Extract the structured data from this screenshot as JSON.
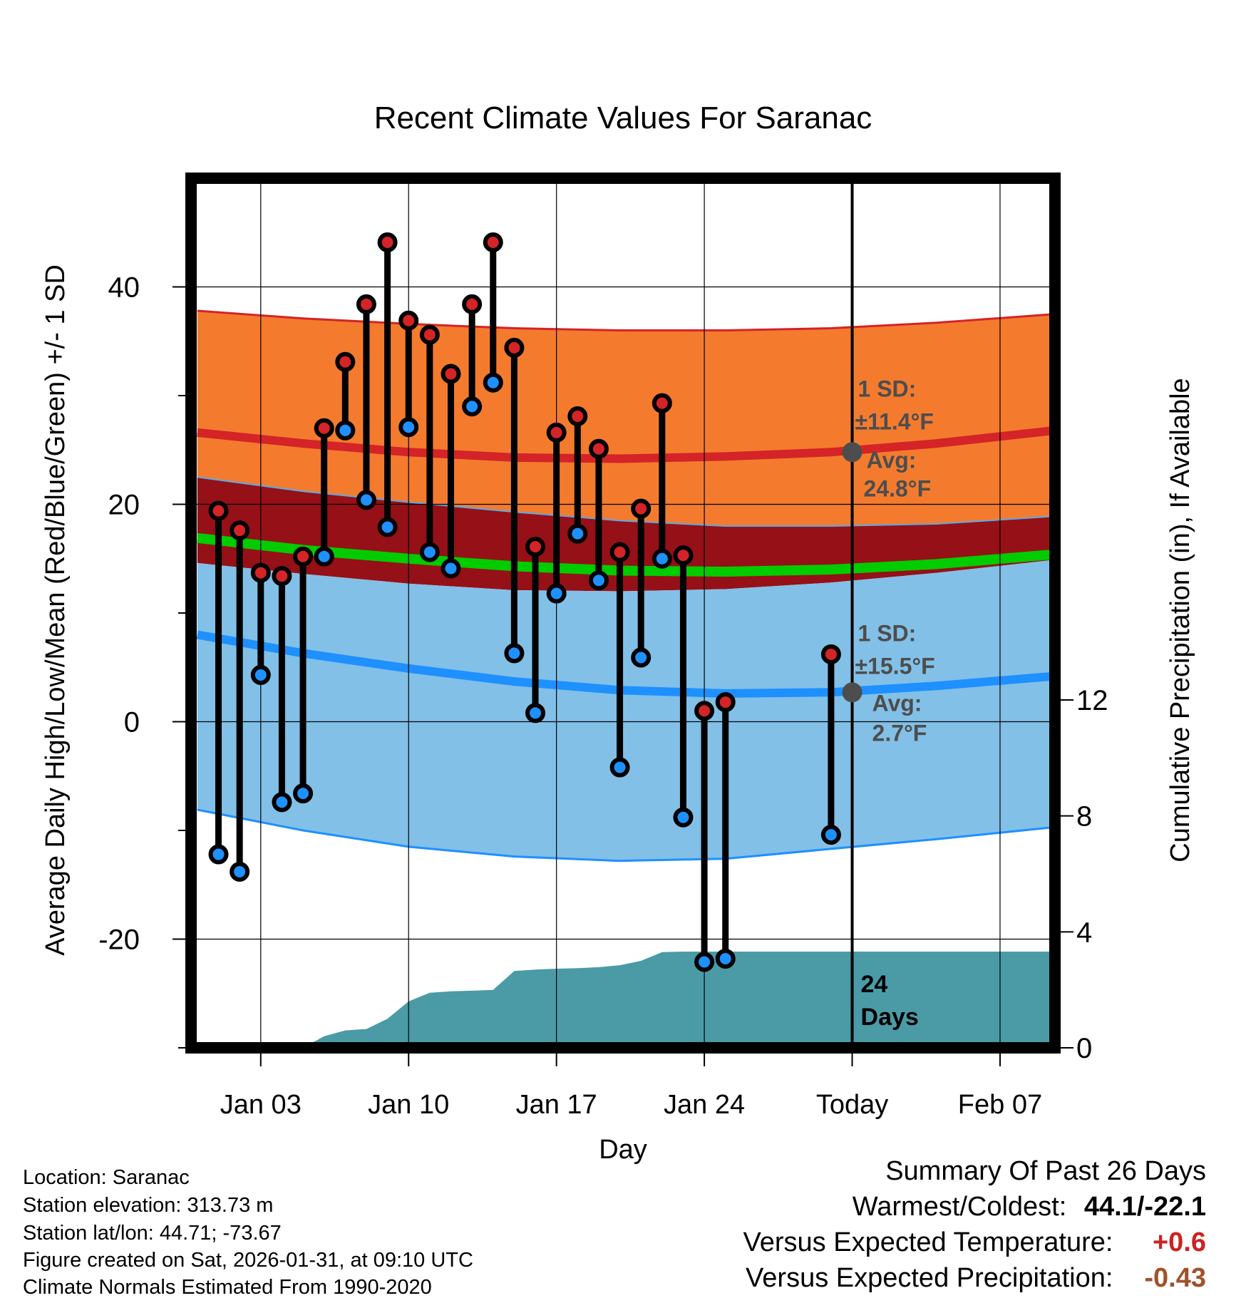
{
  "chart_data": {
    "type": "line",
    "title": "Recent Climate Values For Saranac",
    "xlabel": "Day",
    "ylabel": "Average Daily High/Low/Mean (Red/Blue/Green) +/- 1 SD",
    "ylabel_right": "Cumulative Precipitation (in), If Available",
    "ylim": [
      -30,
      50
    ],
    "y_ticks": [
      -20,
      0,
      20,
      40
    ],
    "y2lim": [
      0,
      30
    ],
    "y2_ticks": [
      0,
      4,
      8,
      12
    ],
    "xlim": [
      -0.3,
      40.6
    ],
    "x_ticks": [
      {
        "day": 3,
        "label": "Jan 03"
      },
      {
        "day": 10,
        "label": "Jan 10"
      },
      {
        "day": 17,
        "label": "Jan 17"
      },
      {
        "day": 24,
        "label": "Jan 24"
      },
      {
        "day": 31,
        "label": "Today"
      },
      {
        "day": 38,
        "label": "Feb 07"
      }
    ],
    "today_day": 31,
    "daily": {
      "day": [
        1,
        2,
        3,
        4,
        5,
        6,
        7,
        8,
        9,
        10,
        11,
        12,
        13,
        14,
        15,
        16,
        17,
        18,
        19,
        20,
        21,
        22,
        23,
        24,
        25,
        30
      ],
      "high": [
        19.4,
        17.6,
        13.7,
        13.4,
        15.2,
        27.0,
        33.1,
        38.4,
        44.1,
        36.9,
        35.6,
        32.0,
        38.4,
        44.1,
        34.4,
        16.1,
        26.6,
        28.1,
        25.1,
        15.6,
        19.6,
        29.3,
        15.3,
        1.0,
        1.8,
        6.2
      ],
      "low": [
        -12.2,
        -13.8,
        4.3,
        -7.4,
        -6.6,
        15.2,
        26.8,
        20.4,
        17.9,
        27.1,
        15.6,
        14.1,
        29.0,
        31.2,
        6.3,
        0.8,
        11.8,
        17.3,
        13.0,
        -4.2,
        5.9,
        15.0,
        -8.8,
        -22.1,
        -21.8,
        -10.4
      ]
    },
    "normals": {
      "day": [
        0,
        5,
        10,
        15,
        20,
        25,
        30,
        35,
        40.6
      ],
      "high_avg": [
        26.6,
        25.6,
        24.8,
        24.3,
        24.2,
        24.4,
        24.8,
        25.6,
        26.8
      ],
      "high_plus": [
        37.8,
        37.1,
        36.6,
        36.2,
        36.0,
        36.0,
        36.2,
        36.7,
        37.5
      ],
      "high_minus": [
        22.5,
        21.2,
        20.2,
        19.3,
        18.5,
        18.0,
        18.0,
        18.2,
        18.9
      ],
      "mean": [
        16.9,
        15.8,
        15.0,
        14.3,
        13.9,
        13.8,
        14.0,
        14.5,
        15.4
      ],
      "low_avg": [
        8.0,
        6.3,
        4.9,
        3.7,
        2.9,
        2.6,
        2.7,
        3.3,
        4.2
      ],
      "low_plus": [
        14.6,
        13.6,
        12.7,
        12.1,
        12.0,
        12.2,
        12.8,
        13.7,
        14.9
      ],
      "low_minus": [
        -8.1,
        -10.0,
        -11.5,
        -12.4,
        -12.8,
        -12.6,
        -11.7,
        -10.8,
        -9.7
      ]
    },
    "precip": {
      "day": [
        -0.3,
        4.0,
        5.0,
        6.0,
        7.0,
        8.0,
        9.0,
        10.0,
        11.0,
        12.0,
        13.0,
        14.0,
        15.0,
        16.0,
        17.0,
        18.0,
        19.0,
        20.0,
        21.0,
        22.0,
        23.0,
        24.0,
        30.0,
        40.6
      ],
      "value": [
        0.0,
        0.0,
        0.0,
        0.4,
        0.6,
        0.65,
        1.0,
        1.6,
        1.9,
        1.95,
        1.97,
        2.0,
        2.65,
        2.7,
        2.73,
        2.75,
        2.78,
        2.85,
        3.0,
        3.3,
        3.32,
        3.32,
        3.32,
        3.32
      ]
    },
    "annotations": {
      "high_sd_label": "1 SD:",
      "high_sd_value": "±11.4°F",
      "high_avg_label": "Avg:",
      "high_avg_value": "24.8°F",
      "high_avg": 24.8,
      "low_sd_label": "1 SD:",
      "low_sd_value": "±15.5°F",
      "low_avg_label": "Avg:",
      "low_avg_value": "2.7°F",
      "low_avg": 2.7,
      "precip_days_label": "24\nDays"
    },
    "colors": {
      "high_band": "#f47b2e",
      "high_band_edge": "#d42427",
      "high_avg": "#d42427",
      "mean_band": "#961017",
      "mean_line": "#00cc00",
      "low_band": "#82c0e7",
      "low_band_edge": "#1e90ff",
      "low_avg": "#1e90ff",
      "precip": "#4a9ba6",
      "high_dot": "#d42427",
      "low_dot": "#1e90ff",
      "annotation": "#4d4d4d"
    }
  },
  "info": {
    "location": "Location: Saranac",
    "elevation": "Station elevation: 313.73 m",
    "latlon": "Station lat/lon: 44.71; -73.67",
    "created": "Figure created on Sat, 2026-01-31, at 09:10 UTC",
    "normals": "Climate Normals Estimated From 1990-2020"
  },
  "summary": {
    "title": "Summary Of Past 26 Days",
    "warm_cold_label": "Warmest/Coldest:",
    "warm_cold_value": "44.1/-22.1",
    "temp_label": "Versus Expected Temperature:",
    "temp_value": "+0.6",
    "temp_color": "#cc2222",
    "precip_label": "Versus Expected Precipitation:",
    "precip_value": "-0.43",
    "precip_color": "#a0522d"
  }
}
